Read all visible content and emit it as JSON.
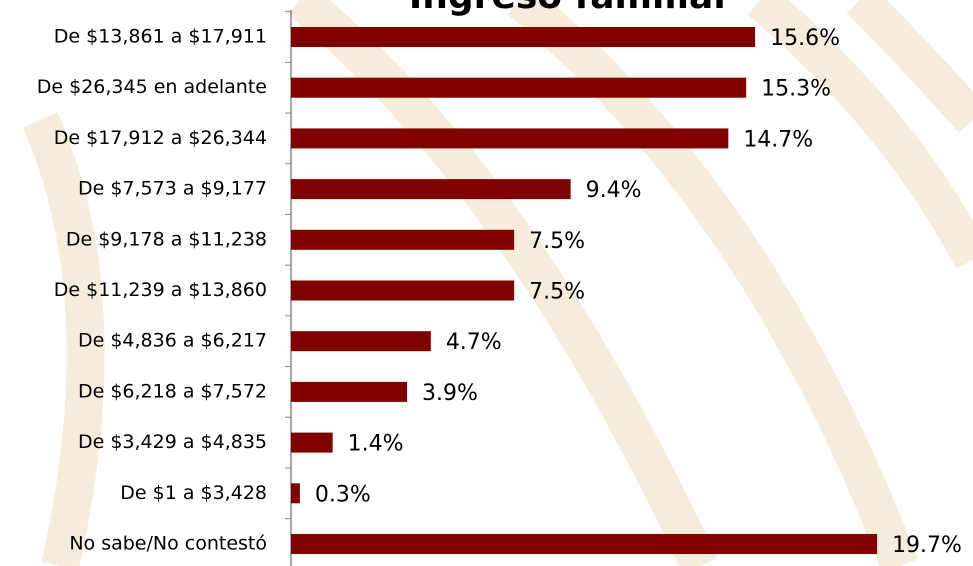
{
  "chart_data": {
    "type": "bar",
    "orientation": "horizontal",
    "title": "Ingreso familiar",
    "categories": [
      "De $13,861 a $17,911",
      "De $26,345 en adelante",
      "De $17,912 a $26,344",
      "De $7,573 a $9,177",
      "De $9,178 a $11,238",
      "De $11,239 a $13,860",
      "De $4,836 a $6,217",
      "De $6,218 a $7,572",
      "De $3,429 a $4,835",
      "De $1 a $3,428",
      "No sabe/No contestó"
    ],
    "values": [
      15.6,
      15.3,
      14.7,
      9.4,
      7.5,
      7.5,
      4.7,
      3.9,
      1.4,
      0.3,
      19.7
    ],
    "value_labels": [
      "15.6%",
      "15.3%",
      "14.7%",
      "9.4%",
      "7.5%",
      "7.5%",
      "4.7%",
      "3.9%",
      "1.4%",
      "0.3%",
      "19.7%"
    ],
    "color": "#800000",
    "xlim": [
      0,
      20
    ]
  }
}
